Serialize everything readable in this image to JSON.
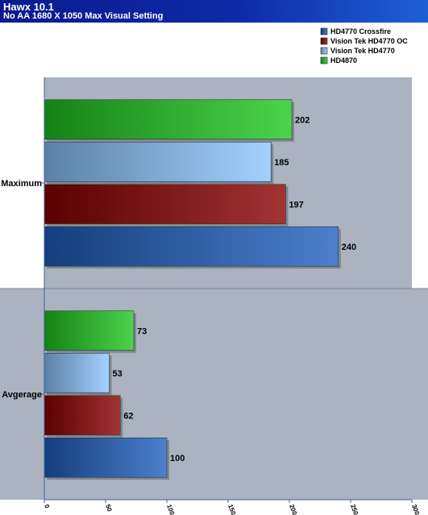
{
  "header": {
    "title": "Hawx 10.1",
    "subtitle": "No AA 1680 X 1050 Max Visual Setting"
  },
  "colors": {
    "background_top": "#aab3bf",
    "background_bottom": "#aab3bf",
    "hd4770_crossfire": "#1f5fbf",
    "vision_tek_hd4770_oc": "#8b0000",
    "vision_tek_hd4770": "#8cc6ff",
    "hd4870": "#1fc81f"
  },
  "chart_data": {
    "type": "bar",
    "orientation": "horizontal",
    "categories": [
      "Maximum",
      "Avgerage"
    ],
    "series": [
      {
        "name": "HD4770 Crossfire",
        "values": [
          240,
          100
        ],
        "color": "#1f5fbf"
      },
      {
        "name": "Vision Tek HD4770 OC",
        "values": [
          197,
          62
        ],
        "color": "#8b0000"
      },
      {
        "name": "Vision Tek HD4770",
        "values": [
          185,
          53
        ],
        "color": "#8cc6ff"
      },
      {
        "name": "HD4870",
        "values": [
          202,
          73
        ],
        "color": "#1fc81f"
      }
    ],
    "xlim": [
      0,
      300
    ],
    "xticks": [
      "0",
      "50",
      "100",
      "150",
      "200",
      "250",
      "300"
    ],
    "legend": "top-right",
    "data_labels": true
  }
}
